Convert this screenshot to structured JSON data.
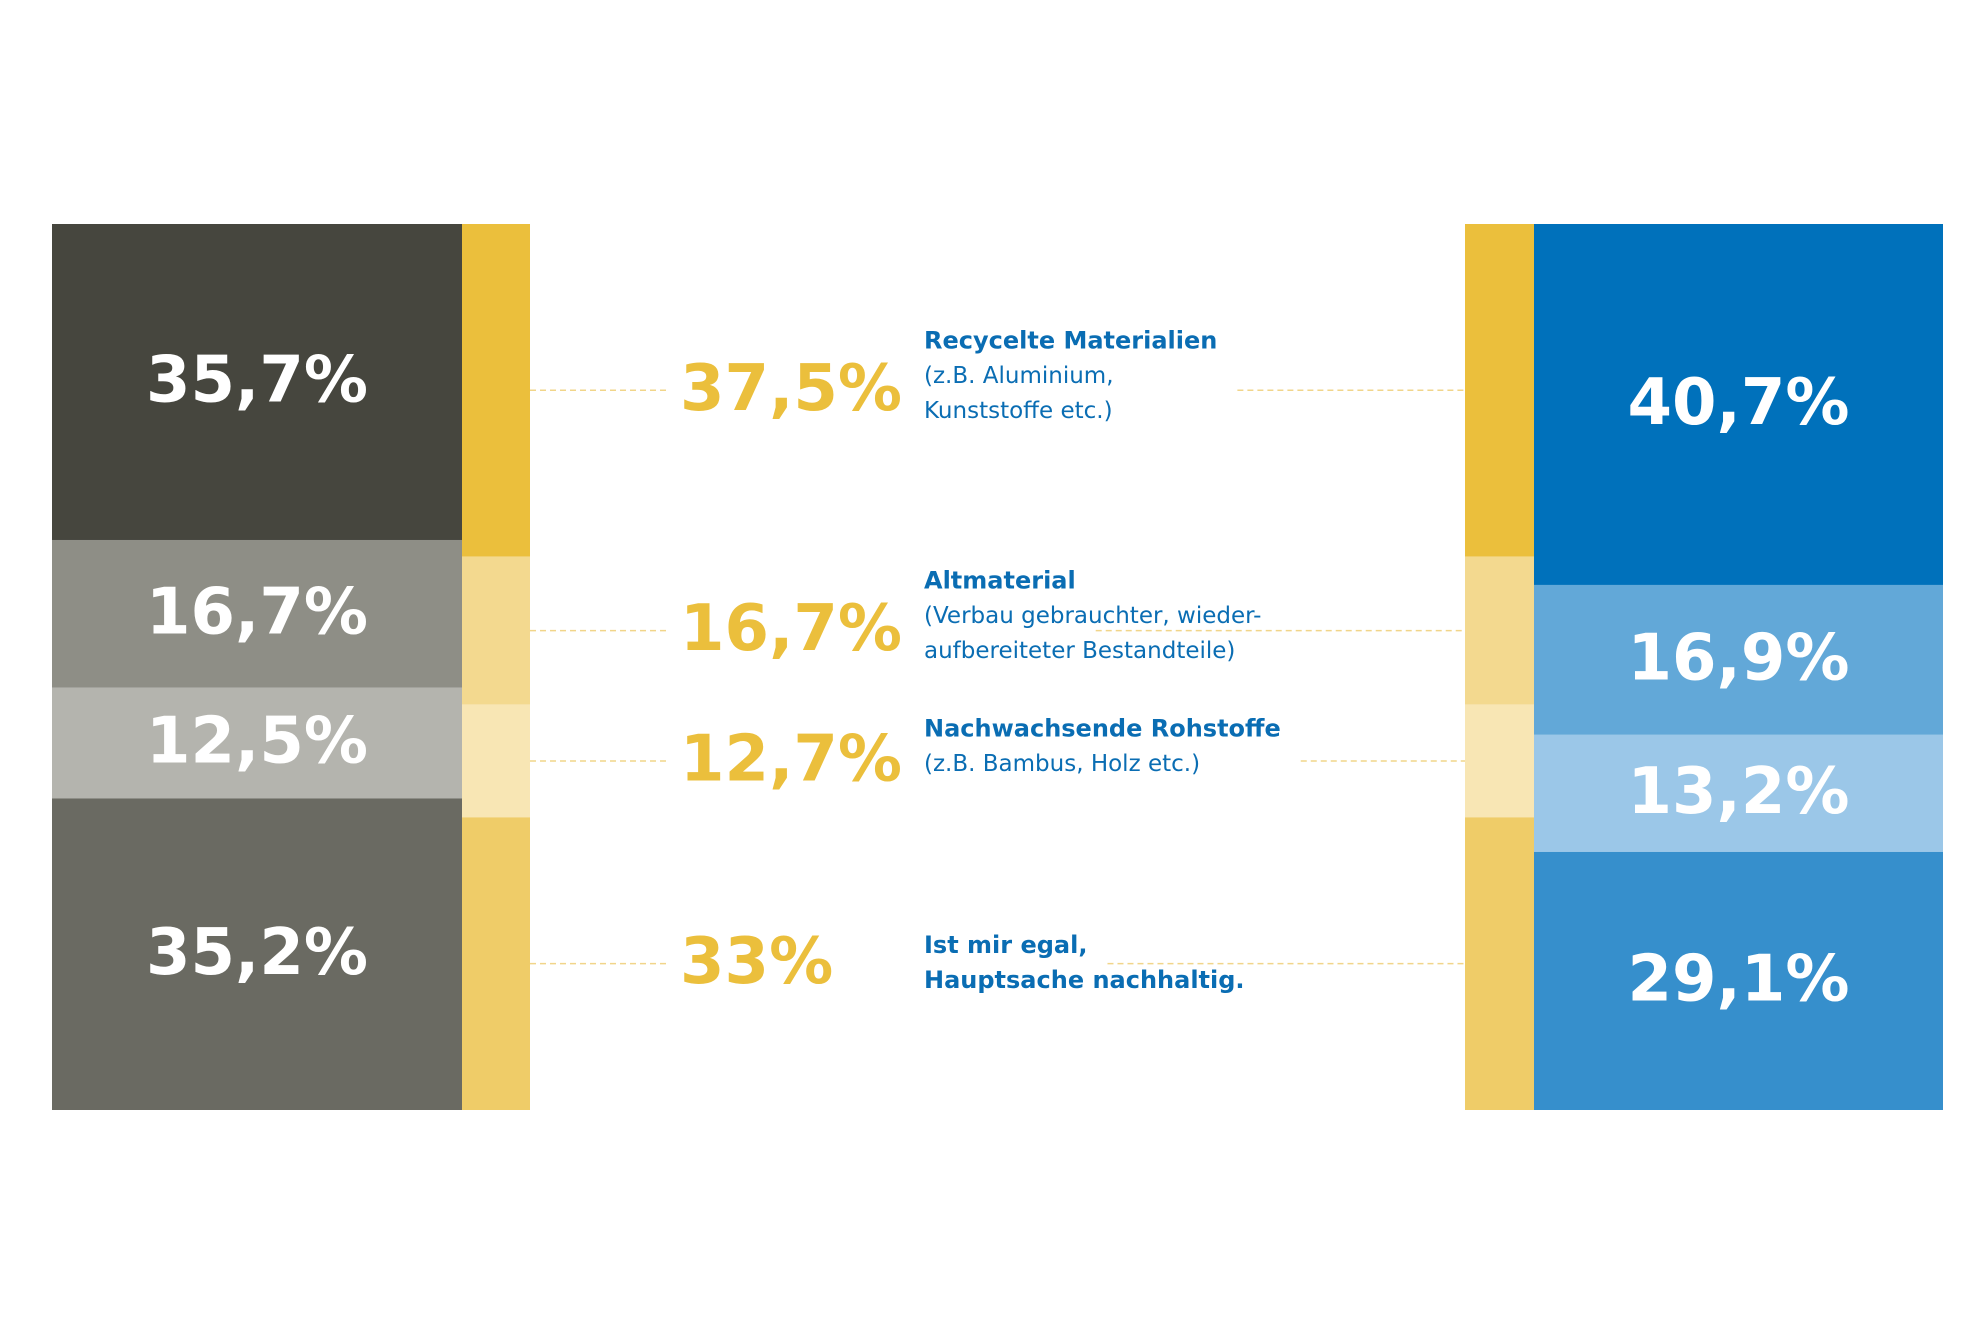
{
  "chart_data": {
    "type": "stacked_bar",
    "categories": [
      [
        "Recycelte Materialien"
      ],
      [
        "Altmaterial"
      ],
      [
        "Nachwachsende Rohstoffe"
      ],
      [
        "Ist mir egal,",
        "Hauptsache nachhaltig."
      ]
    ],
    "descriptions": [
      [
        "(z.B. Aluminium,",
        "Kunststoffe etc.)"
      ],
      [
        "(Verbau gebrauchter, wieder-",
        "aufbereiteter Bestandteile)"
      ],
      [
        "(z.B. Bambus, Holz etc.)"
      ],
      []
    ],
    "series": [
      {
        "colors": [
          "#46463e",
          "#8e8e86",
          "#b4b4ae",
          "#6a6a62"
        ],
        "values": [
          35.7,
          16.7,
          12.5,
          35.2
        ],
        "value_labels": [
          "35,7%",
          "16,7%",
          "12,5%",
          "35,2%"
        ]
      },
      {
        "colors": [
          "#ebbf3c",
          "#f3d98f",
          "#f8e6b4",
          "#efcc68"
        ],
        "values": [
          37.5,
          16.7,
          12.7,
          33
        ],
        "value_labels": [
          "37,5%",
          "16,7%",
          "12,7%",
          "33%"
        ]
      },
      {
        "colors": [
          "#0071bb",
          "#62a8d8",
          "#9bc7e8",
          "#368fcc"
        ],
        "values": [
          40.7,
          16.9,
          13.2,
          29.1
        ],
        "value_labels": [
          "40,7%",
          "16,9%",
          "13,2%",
          "29,1%"
        ]
      }
    ],
    "label_color": "#ebbf3c",
    "category_color": "#0a6db3"
  }
}
